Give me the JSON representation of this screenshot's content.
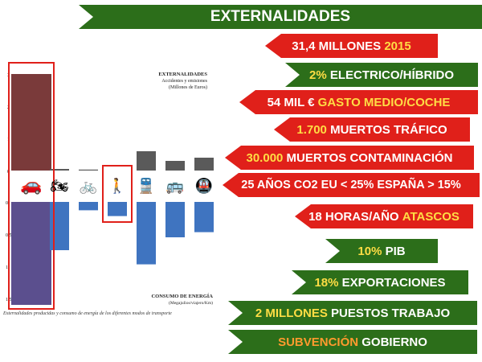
{
  "banners": [
    {
      "color": "green",
      "parts": [
        {
          "text": "EXTERNALIDADES",
          "hl": ""
        }
      ]
    },
    {
      "color": "red",
      "parts": [
        {
          "text": "31,4 MILLONES ",
          "hl": ""
        },
        {
          "text": "2015",
          "hl": "y"
        }
      ]
    },
    {
      "color": "green",
      "parts": [
        {
          "text": "2% ",
          "hl": "y"
        },
        {
          "text": "ELECTRICO/HÍBRIDO",
          "hl": ""
        }
      ]
    },
    {
      "color": "red",
      "parts": [
        {
          "text": "54 MIL € ",
          "hl": ""
        },
        {
          "text": "GASTO MEDIO/COCHE",
          "hl": "y"
        }
      ]
    },
    {
      "color": "red",
      "parts": [
        {
          "text": "1.700 ",
          "hl": "y"
        },
        {
          "text": "MUERTOS TRÁFICO",
          "hl": ""
        }
      ]
    },
    {
      "color": "red",
      "parts": [
        {
          "text": "30.000 ",
          "hl": "y"
        },
        {
          "text": "MUERTOS CONTAMINACIÓN",
          "hl": ""
        }
      ]
    },
    {
      "color": "red",
      "parts": [
        {
          "text": "25 AÑOS CO2 EU < 25% ESPAÑA > 15%",
          "hl": ""
        }
      ]
    },
    {
      "color": "red",
      "parts": [
        {
          "text": "18 HORAS/AÑO ",
          "hl": ""
        },
        {
          "text": "ATASCOS",
          "hl": "y"
        }
      ]
    },
    {
      "color": "green",
      "parts": [
        {
          "text": "10% ",
          "hl": "y"
        },
        {
          "text": "PIB",
          "hl": ""
        }
      ]
    },
    {
      "color": "green",
      "parts": [
        {
          "text": "18% ",
          "hl": "y"
        },
        {
          "text": "EXPORTACIONES",
          "hl": ""
        }
      ]
    },
    {
      "color": "green",
      "parts": [
        {
          "text": "2 MILLONES ",
          "hl": "y"
        },
        {
          "text": "PUESTOS TRABAJO",
          "hl": ""
        }
      ]
    },
    {
      "color": "green",
      "parts": [
        {
          "text": "SUBVENCIÓN ",
          "hl": "o"
        },
        {
          "text": "GOBIERNO",
          "hl": ""
        }
      ]
    }
  ],
  "chart_data": {
    "type": "bar",
    "top_title": "EXTERNALIDADES",
    "top_subtitle_1": "Accidentes y emisiones",
    "top_subtitle_2": "(Millones de Euros)",
    "bottom_title": "CONSUMO DE ENERGÍA",
    "bottom_subtitle": "(Megajulios/viajero/Km)",
    "caption": "Externalidades producidas y consumo de energía de los diferentes modos de transporte",
    "categories": [
      "car-icon",
      "motorcycle-icon",
      "bicycle-icon",
      "pedestrian-icon",
      "train-icon",
      "bus-icon",
      "metro-icon"
    ],
    "series": [
      {
        "values": [
          3.0,
          0.05,
          0.03,
          0.0,
          0.6,
          0.3,
          0.4
        ],
        "color": "#5a5a5a"
      },
      {
        "values": [
          1.6,
          0.75,
          0.13,
          0.22,
          0.97,
          0.55,
          0.47
        ],
        "color": "#3f74c0"
      }
    ],
    "top_ticks": [
      "3",
      "2",
      "1",
      "0"
    ],
    "bottom_ticks": [
      "0",
      "0,5",
      "1",
      "1,5"
    ],
    "highlight_color": "#e0201a"
  }
}
